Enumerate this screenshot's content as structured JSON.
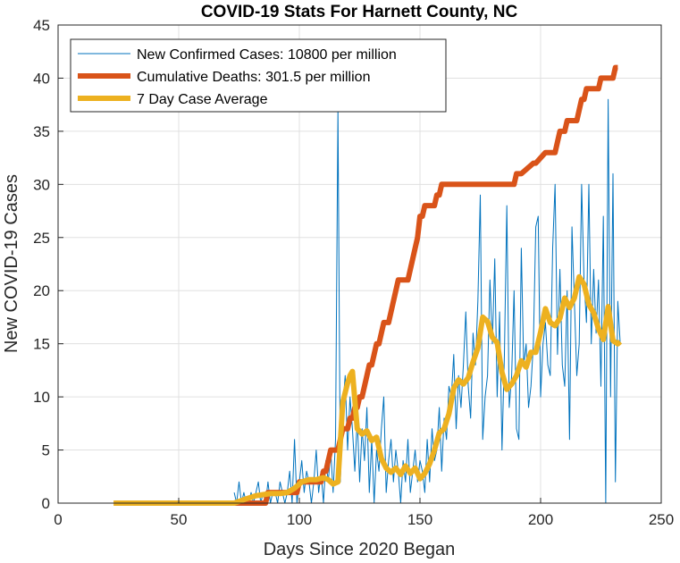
{
  "chart_data": {
    "type": "line",
    "title": "COVID-19 Stats For Harnett County, NC",
    "xlabel": "Days Since 2020 Began",
    "ylabel": "New COVID-19 Cases",
    "xlim": [
      0,
      250
    ],
    "ylim": [
      0,
      45
    ],
    "xticks": [
      "0",
      "50",
      "100",
      "150",
      "200",
      "250"
    ],
    "yticks": [
      "0",
      "5",
      "10",
      "15",
      "20",
      "25",
      "30",
      "35",
      "40",
      "45"
    ],
    "grid": true,
    "legend_position": "top-left",
    "series": [
      {
        "name": "New Confirmed Cases: 10800 per million",
        "color": "#0072BD",
        "style": "thin",
        "x": [
          73,
          74,
          75,
          76,
          77,
          78,
          79,
          80,
          81,
          82,
          83,
          84,
          85,
          86,
          87,
          88,
          89,
          90,
          91,
          92,
          93,
          94,
          95,
          96,
          97,
          98,
          99,
          100,
          101,
          102,
          103,
          104,
          105,
          106,
          107,
          108,
          109,
          110,
          111,
          112,
          113,
          114,
          115,
          116,
          117,
          118,
          119,
          120,
          121,
          122,
          123,
          124,
          125,
          126,
          127,
          128,
          129,
          130,
          131,
          132,
          133,
          134,
          135,
          136,
          137,
          138,
          139,
          140,
          141,
          142,
          143,
          144,
          145,
          146,
          147,
          148,
          149,
          150,
          151,
          152,
          153,
          154,
          155,
          156,
          157,
          158,
          159,
          160,
          161,
          162,
          163,
          164,
          165,
          166,
          167,
          168,
          169,
          170,
          171,
          172,
          173,
          174,
          175,
          176,
          177,
          178,
          179,
          180,
          181,
          182,
          183,
          184,
          185,
          186,
          187,
          188,
          189,
          190,
          191,
          192,
          193,
          194,
          195,
          196,
          197,
          198,
          199,
          200,
          201,
          202,
          203,
          204,
          205,
          206,
          207,
          208,
          209,
          210,
          211,
          212,
          213,
          214,
          215,
          216,
          217,
          218,
          219,
          220,
          221,
          222,
          223,
          224,
          225,
          226,
          227,
          228,
          229,
          230,
          231,
          232,
          233
        ],
        "y": [
          1,
          0,
          2,
          0,
          1,
          0,
          0,
          1,
          0,
          1,
          2,
          0,
          1,
          0,
          2,
          0,
          1,
          1,
          0,
          2,
          1,
          0,
          1,
          3,
          0,
          6,
          0,
          2,
          4,
          1,
          3,
          2,
          0,
          2,
          5,
          1,
          3,
          0,
          4,
          2,
          5,
          1,
          6,
          37,
          2,
          9,
          12,
          5,
          10,
          7,
          3,
          8,
          2,
          7,
          4,
          9,
          1,
          6,
          0,
          5,
          3,
          7,
          10,
          1,
          4,
          6,
          2,
          5,
          3,
          0,
          4,
          2,
          6,
          1,
          3,
          5,
          2,
          4,
          3,
          1,
          6,
          2,
          7,
          4,
          5,
          9,
          3,
          8,
          6,
          11,
          10,
          14,
          7,
          12,
          9,
          13,
          18,
          11,
          8,
          16,
          13,
          19,
          29,
          6,
          10,
          12,
          21,
          15,
          23,
          10,
          18,
          5,
          14,
          28,
          9,
          12,
          20,
          7,
          6,
          24,
          13,
          15,
          9,
          11,
          15,
          26,
          27,
          10,
          15,
          17,
          13,
          12,
          24,
          30,
          14,
          22,
          13,
          11,
          20,
          6,
          26,
          19,
          12,
          15,
          30,
          21,
          17,
          30,
          15,
          22,
          16,
          21,
          11,
          27,
          0,
          38,
          10,
          31,
          2,
          19,
          15
        ],
        "points_estimated": true
      },
      {
        "name": "Cumulative Deaths: 301.5 per million",
        "color": "#D95319",
        "style": "thick",
        "x": [
          73,
          85,
          86,
          87,
          89,
          90,
          91,
          92,
          95,
          96,
          98,
          99,
          100,
          101,
          103,
          104,
          109,
          110,
          111,
          112,
          113,
          114,
          115,
          116,
          117,
          118,
          119,
          120,
          121,
          122,
          123,
          124,
          125,
          126,
          127,
          128,
          129,
          130,
          131,
          132,
          133,
          134,
          135,
          136,
          137,
          138,
          139,
          140,
          141,
          142,
          143,
          144,
          145,
          146,
          147,
          148,
          149,
          150,
          151,
          152,
          153,
          154,
          155,
          156,
          157,
          158,
          159,
          160,
          161,
          189,
          190,
          192,
          197,
          198,
          202,
          206,
          207,
          208,
          210,
          211,
          213,
          214,
          215,
          216,
          217,
          218,
          219,
          220,
          224,
          225,
          226,
          227,
          228,
          229,
          230,
          231,
          232
        ],
        "y": [
          0,
          0,
          0,
          1,
          1,
          1,
          1,
          1,
          1,
          1,
          1,
          1,
          2,
          2,
          2,
          2,
          2,
          3,
          3,
          4,
          5,
          5,
          5,
          5,
          6,
          7,
          7,
          7,
          8,
          8,
          9,
          9,
          10,
          10,
          11,
          12,
          13,
          13,
          14,
          15,
          15,
          16,
          17,
          17,
          17,
          18,
          19,
          20,
          21,
          21,
          21,
          21,
          21,
          22,
          23,
          24,
          25,
          27,
          27,
          28,
          28,
          28,
          28,
          28,
          29,
          29,
          30,
          30,
          30,
          30,
          31,
          31,
          32,
          32,
          33,
          33,
          34,
          35,
          35,
          36,
          36,
          36,
          36,
          37,
          38,
          38,
          39,
          39,
          39,
          40,
          40,
          40,
          40,
          40,
          40,
          41,
          41
        ],
        "points_estimated": true
      },
      {
        "name": "7 Day Case Average",
        "color": "#EDB120",
        "style": "thick",
        "x": [
          23,
          60,
          73,
          78,
          82,
          85,
          88,
          92,
          95,
          98,
          101,
          104,
          107,
          110,
          112,
          114,
          116,
          118,
          120,
          121,
          122,
          124,
          126,
          128,
          130,
          132,
          134,
          136,
          138,
          140,
          142,
          144,
          146,
          148,
          150,
          152,
          154,
          156,
          158,
          160,
          162,
          164,
          166,
          168,
          170,
          172,
          174,
          176,
          178,
          180,
          182,
          184,
          186,
          188,
          190,
          192,
          194,
          196,
          198,
          200,
          202,
          204,
          206,
          208,
          210,
          212,
          214,
          216,
          218,
          220,
          222,
          224,
          226,
          228,
          230,
          232,
          233
        ],
        "y": [
          0,
          0,
          0,
          0.4,
          0.7,
          0.8,
          0.9,
          0.9,
          1.0,
          1.4,
          2.0,
          2.2,
          2.2,
          2.4,
          2.2,
          1.8,
          2.0,
          9.5,
          11.3,
          12.0,
          12.4,
          7.0,
          6.5,
          6.8,
          5.9,
          6.2,
          4.2,
          3.3,
          2.9,
          3.3,
          2.7,
          3.5,
          2.8,
          3.3,
          2.3,
          2.8,
          3.7,
          5.0,
          6.6,
          7.0,
          8.4,
          10.8,
          11.6,
          11.2,
          11.8,
          13.3,
          14.6,
          17.5,
          17.1,
          15.6,
          15.1,
          12.3,
          10.7,
          11.2,
          12.0,
          13.4,
          12.8,
          14.2,
          14.2,
          16.1,
          18.3,
          17.0,
          16.7,
          17.4,
          19.3,
          18.4,
          19.3,
          21.3,
          20.6,
          18.7,
          17.9,
          16.4,
          15.4,
          18.5,
          15.3,
          15.0,
          15.2
        ],
        "points_estimated": true
      }
    ]
  }
}
